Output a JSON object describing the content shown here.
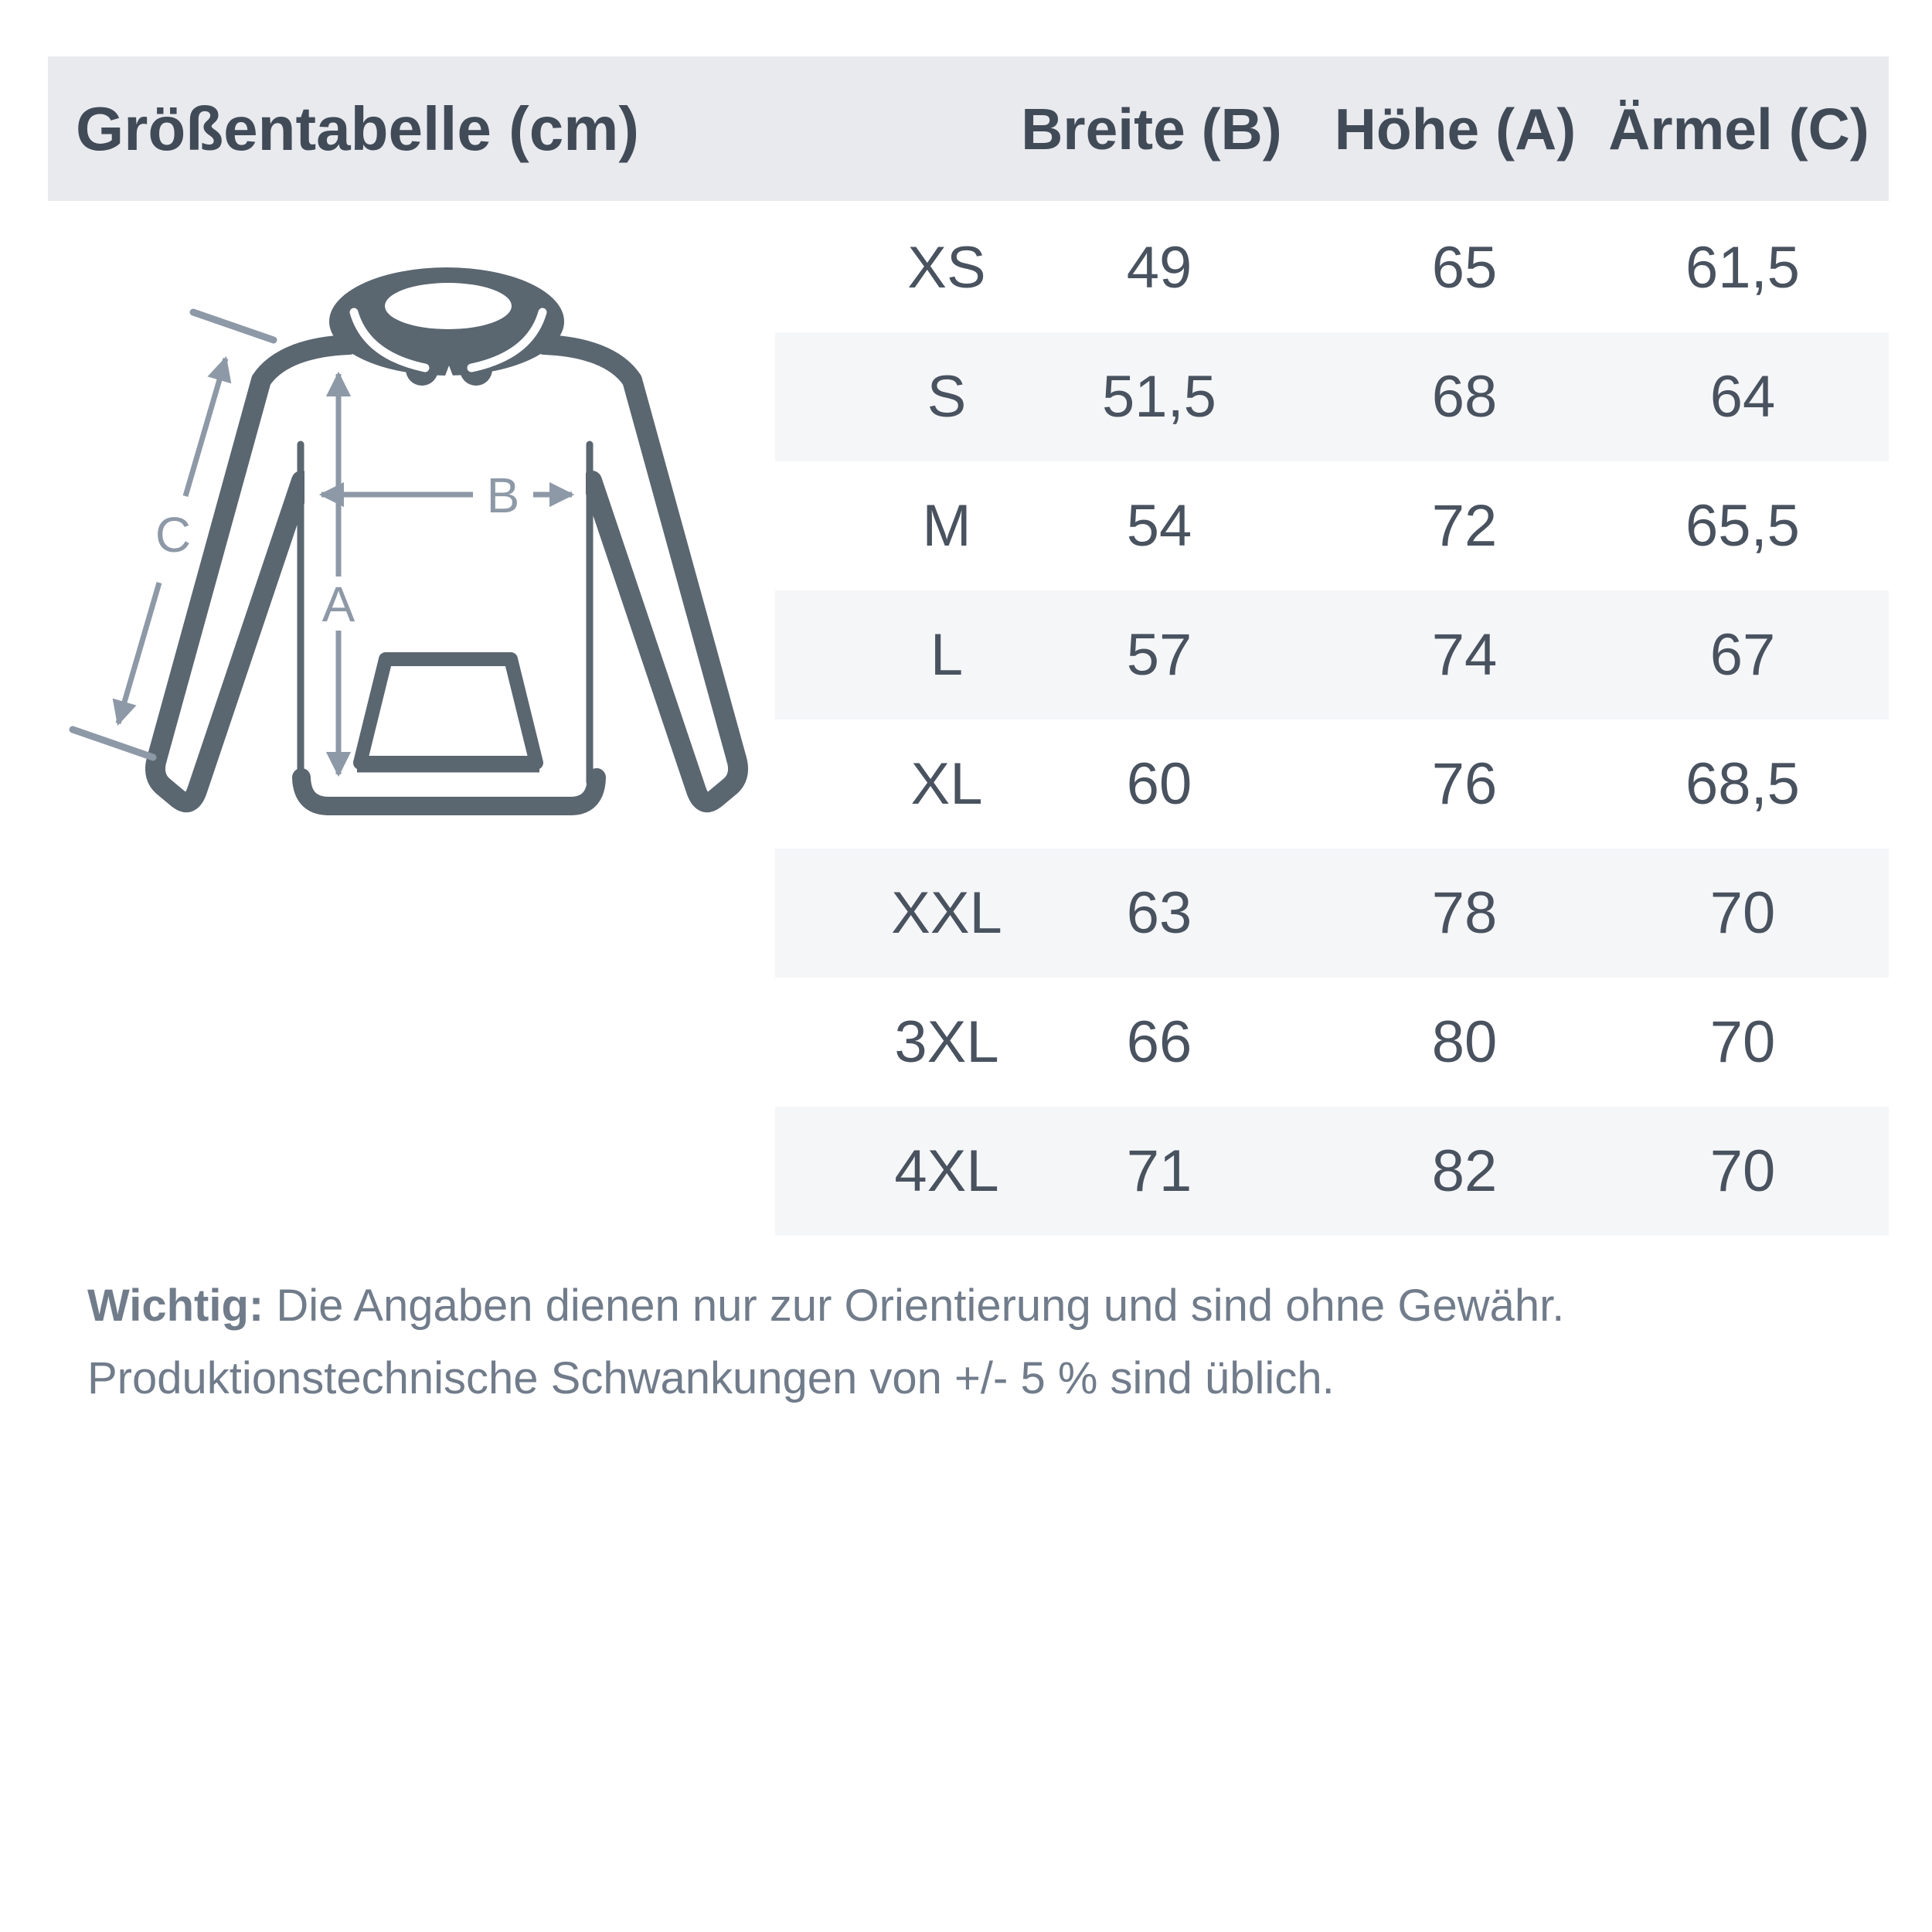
{
  "colors": {
    "page_bg": "#ffffff",
    "band_bg": "#e9eaee",
    "row_alt_bg": "#f5f6f8",
    "title_color": "#414b58",
    "table_text": "#49525f",
    "muted_text": "#717c8b",
    "garment_outline": "#5a6670",
    "arrow_color": "#8e99a7"
  },
  "header": {
    "title": "Größentabelle (cm)",
    "columns": [
      "Breite (B)",
      "Höhe (A)",
      "Ärmel (C)"
    ]
  },
  "diagram": {
    "type": "hoodie-measure-sketch",
    "labels": {
      "a": "A",
      "b": "B",
      "c": "C"
    }
  },
  "table": {
    "rows": [
      {
        "size": "XS",
        "breite": "49",
        "hoehe": "65",
        "aermel": "61,5"
      },
      {
        "size": "S",
        "breite": "51,5",
        "hoehe": "68",
        "aermel": "64"
      },
      {
        "size": "M",
        "breite": "54",
        "hoehe": "72",
        "aermel": "65,5"
      },
      {
        "size": "L",
        "breite": "57",
        "hoehe": "74",
        "aermel": "67"
      },
      {
        "size": "XL",
        "breite": "60",
        "hoehe": "76",
        "aermel": "68,5"
      },
      {
        "size": "XXL",
        "breite": "63",
        "hoehe": "78",
        "aermel": "70"
      },
      {
        "size": "3XL",
        "breite": "66",
        "hoehe": "80",
        "aermel": "70"
      },
      {
        "size": "4XL",
        "breite": "71",
        "hoehe": "82",
        "aermel": "70"
      }
    ]
  },
  "footnote": {
    "bold": "Wichtig:",
    "line1_rest": " Die Angaben dienen nur zur Orientierung und sind ohne Gewähr.",
    "line2": "Produktionstechnische Schwankungen von +/- 5 % sind üblich."
  }
}
